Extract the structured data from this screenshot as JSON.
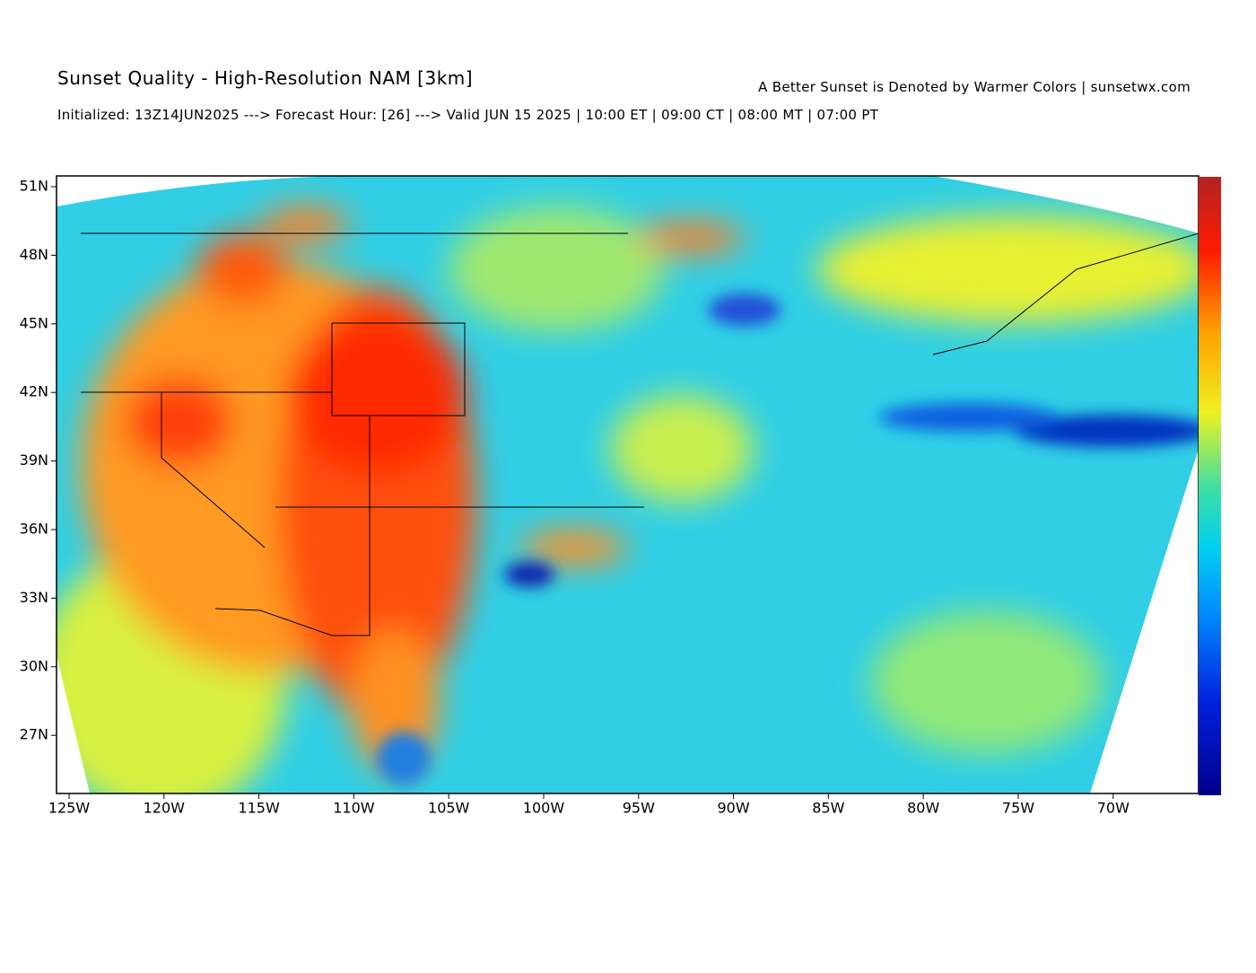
{
  "header": {
    "title": "Sunset Quality - High-Resolution NAM [3km]",
    "tagline": "A Better Sunset is Denoted by Warmer Colors | sunsetwx.com",
    "subtitle": "Initialized: 13Z14JUN2025 ---> Forecast Hour: [26] ---> Valid JUN 15 2025 | 10:00 ET | 09:00 CT | 08:00 MT | 07:00 PT"
  },
  "map": {
    "lat_labels": [
      "51N",
      "48N",
      "45N",
      "42N",
      "39N",
      "36N",
      "33N",
      "30N",
      "27N"
    ],
    "lon_labels": [
      "125W",
      "120W",
      "115W",
      "110W",
      "105W",
      "100W",
      "95W",
      "90W",
      "85W",
      "80W",
      "75W",
      "70W"
    ]
  }
}
